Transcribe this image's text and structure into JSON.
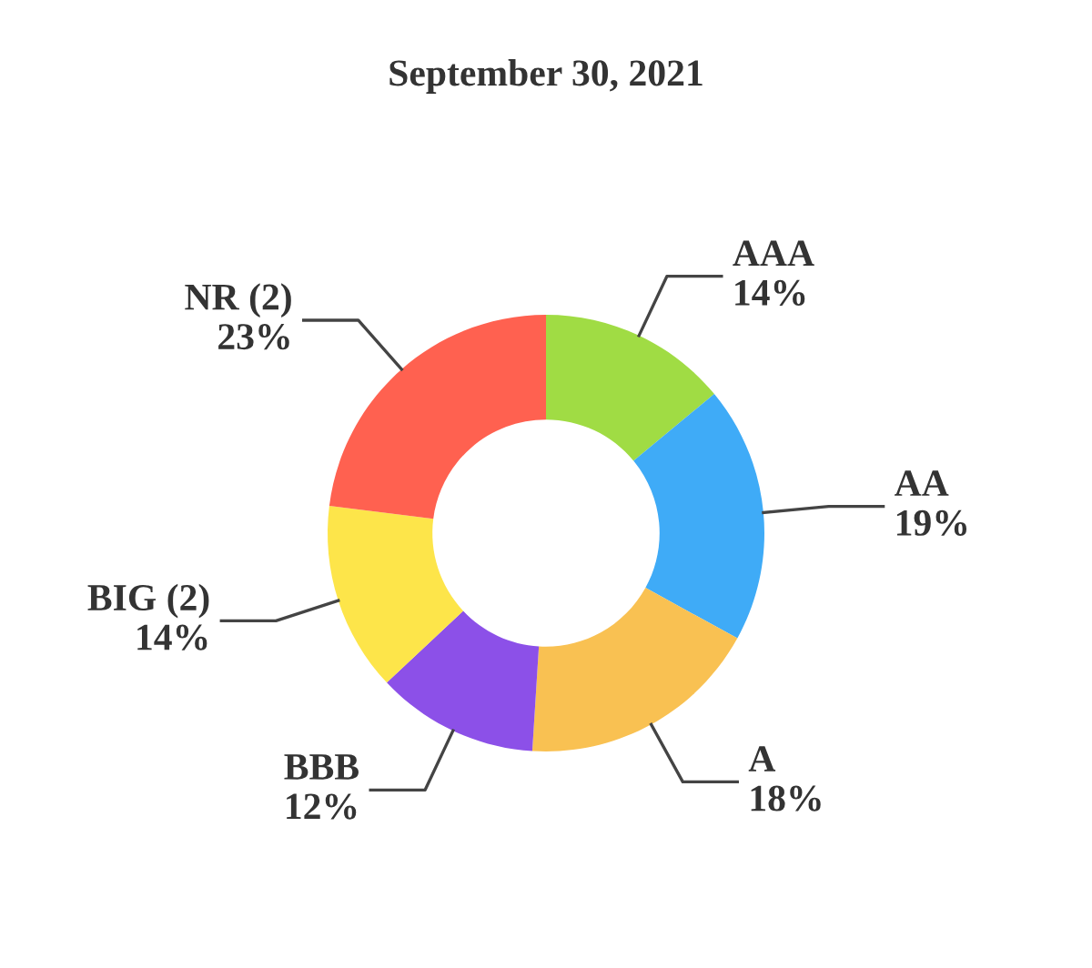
{
  "chart_data": {
    "type": "donut",
    "title": "September 30, 2021",
    "categories": [
      "AAA",
      "AA",
      "A",
      "BBB",
      "BIG (2)",
      "NR (2)"
    ],
    "values": [
      14,
      19,
      18,
      12,
      14,
      23
    ],
    "value_labels": [
      "14%",
      "19%",
      "18%",
      "12%",
      "14%",
      "23%"
    ],
    "colors": [
      "#a0dc44",
      "#3fabf7",
      "#f9c152",
      "#8c50e8",
      "#fde54a",
      "#ff6150"
    ],
    "legend": false
  }
}
